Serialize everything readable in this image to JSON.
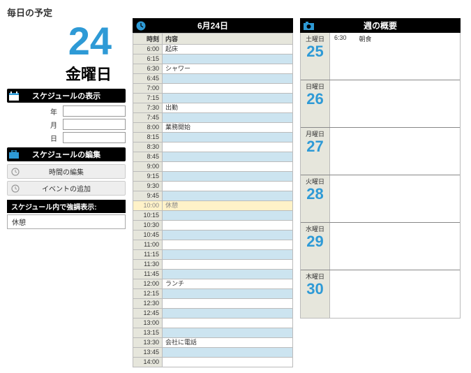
{
  "colors": {
    "accent_blue": "#2e9ad6",
    "header_bg": "#000000",
    "beige": "#e6e6dc",
    "row_alt": "#cce4f0",
    "highlight_row": "#fff2c8"
  },
  "page_title": "毎日の予定",
  "current": {
    "day_number": "24",
    "weekday": "金曜日"
  },
  "sections": {
    "view": {
      "title": "スケジュールの表示",
      "year_label": "年",
      "month_label": "月",
      "day_label": "日"
    },
    "edit": {
      "title": "スケジュールの編集",
      "edit_time": "時間の編集",
      "add_event": "イベントの追加"
    },
    "highlight": {
      "header": "スケジュール内で強調表示:",
      "value": "休憩"
    }
  },
  "day_panel": {
    "title": "6月24日",
    "col_time": "時刻",
    "col_content": "内容",
    "rows": [
      {
        "time": "6:00",
        "content": "起床",
        "alt": false,
        "hl": false
      },
      {
        "time": "6:15",
        "content": "",
        "alt": true,
        "hl": false
      },
      {
        "time": "6:30",
        "content": "シャワー",
        "alt": false,
        "hl": false
      },
      {
        "time": "6:45",
        "content": "",
        "alt": true,
        "hl": false
      },
      {
        "time": "7:00",
        "content": "",
        "alt": false,
        "hl": false
      },
      {
        "time": "7:15",
        "content": "",
        "alt": true,
        "hl": false
      },
      {
        "time": "7:30",
        "content": "出勤",
        "alt": false,
        "hl": false
      },
      {
        "time": "7:45",
        "content": "",
        "alt": true,
        "hl": false
      },
      {
        "time": "8:00",
        "content": "業務開始",
        "alt": false,
        "hl": false
      },
      {
        "time": "8:15",
        "content": "",
        "alt": true,
        "hl": false
      },
      {
        "time": "8:30",
        "content": "",
        "alt": false,
        "hl": false
      },
      {
        "time": "8:45",
        "content": "",
        "alt": true,
        "hl": false
      },
      {
        "time": "9:00",
        "content": "",
        "alt": false,
        "hl": false
      },
      {
        "time": "9:15",
        "content": "",
        "alt": true,
        "hl": false
      },
      {
        "time": "9:30",
        "content": "",
        "alt": false,
        "hl": false
      },
      {
        "time": "9:45",
        "content": "",
        "alt": true,
        "hl": false
      },
      {
        "time": "10:00",
        "content": "休憩",
        "alt": false,
        "hl": true
      },
      {
        "time": "10:15",
        "content": "",
        "alt": true,
        "hl": false
      },
      {
        "time": "10:30",
        "content": "",
        "alt": false,
        "hl": false
      },
      {
        "time": "10:45",
        "content": "",
        "alt": true,
        "hl": false
      },
      {
        "time": "11:00",
        "content": "",
        "alt": false,
        "hl": false
      },
      {
        "time": "11:15",
        "content": "",
        "alt": true,
        "hl": false
      },
      {
        "time": "11:30",
        "content": "",
        "alt": false,
        "hl": false
      },
      {
        "time": "11:45",
        "content": "",
        "alt": true,
        "hl": false
      },
      {
        "time": "12:00",
        "content": "ランチ",
        "alt": false,
        "hl": false
      },
      {
        "time": "12:15",
        "content": "",
        "alt": true,
        "hl": false
      },
      {
        "time": "12:30",
        "content": "",
        "alt": false,
        "hl": false
      },
      {
        "time": "12:45",
        "content": "",
        "alt": true,
        "hl": false
      },
      {
        "time": "13:00",
        "content": "",
        "alt": false,
        "hl": false
      },
      {
        "time": "13:15",
        "content": "",
        "alt": true,
        "hl": false
      },
      {
        "time": "13:30",
        "content": "会社に電話",
        "alt": false,
        "hl": false
      },
      {
        "time": "13:45",
        "content": "",
        "alt": true,
        "hl": false
      },
      {
        "time": "14:00",
        "content": "",
        "alt": false,
        "hl": false
      }
    ]
  },
  "week_panel": {
    "title": "週の概要",
    "days": [
      {
        "name": "土曜日",
        "num": "25",
        "events": [
          {
            "time": "6:30",
            "text": "朝食"
          }
        ]
      },
      {
        "name": "日曜日",
        "num": "26",
        "events": []
      },
      {
        "name": "月曜日",
        "num": "27",
        "events": []
      },
      {
        "name": "火曜日",
        "num": "28",
        "events": []
      },
      {
        "name": "水曜日",
        "num": "29",
        "events": []
      },
      {
        "name": "木曜日",
        "num": "30",
        "events": []
      }
    ]
  }
}
